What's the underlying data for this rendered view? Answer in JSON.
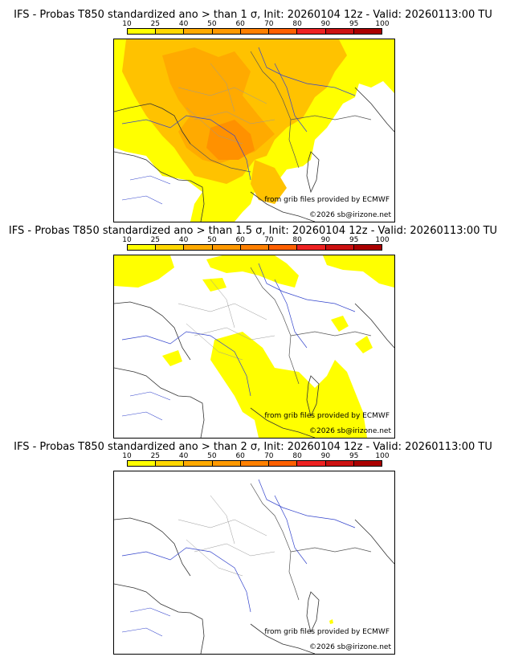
{
  "legend": {
    "ticks": [
      "10",
      "25",
      "40",
      "50",
      "60",
      "70",
      "80",
      "90",
      "95",
      "100"
    ],
    "colors": [
      "#ffff00",
      "#ffd700",
      "#ffaa00",
      "#ff9900",
      "#ff8000",
      "#ff6000",
      "#ee2222",
      "#cc1111",
      "#aa0000",
      "#660000"
    ]
  },
  "panels": [
    {
      "title": "IFS - Probas T850  standardized ano > than 1 σ, Init: 20260104 12z - Valid: 20260113:00 TU",
      "source": "from grib files provided by ECMWF",
      "copyright": "©2026 sb@irizone.net"
    },
    {
      "title": "IFS - Probas T850  standardized ano > than 1.5 σ, Init: 20260104 12z - Valid: 20260113:00 TU",
      "source": "from grib files provided by ECMWF",
      "copyright": "©2026 sb@irizone.net"
    },
    {
      "title": "IFS - Probas T850  standardized ano > than 2 σ, Init: 20260104 12z - Valid: 20260113:00 TU",
      "source": "from grib files provided by ECMWF",
      "copyright": "©2026 sb@irizone.net"
    }
  ]
}
